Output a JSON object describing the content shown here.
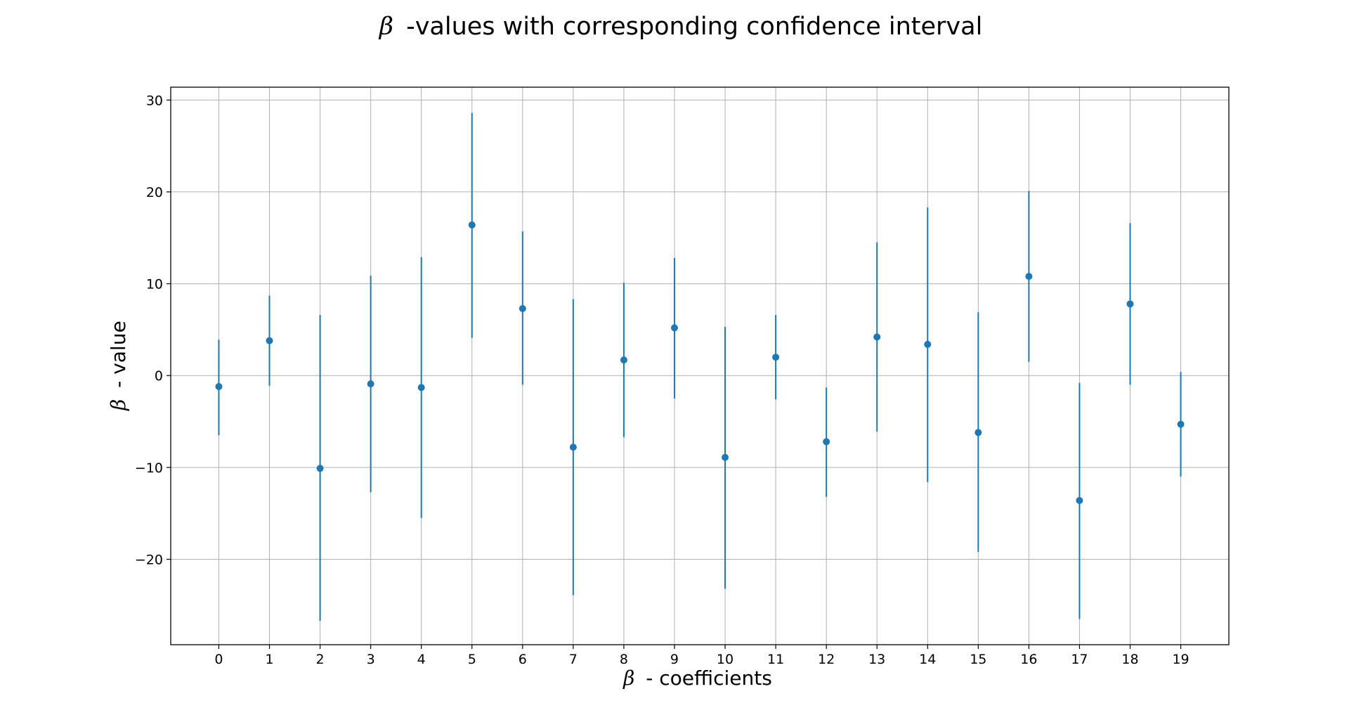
{
  "chart_data": {
    "type": "scatter",
    "title": "-values with corresponding confidence interval",
    "title_symbol": "β",
    "xlabel": "- coefficients",
    "xlabel_symbol": "β",
    "ylabel": "- value",
    "ylabel_symbol": "β",
    "x": [
      0,
      1,
      2,
      3,
      4,
      5,
      6,
      7,
      8,
      9,
      10,
      11,
      12,
      13,
      14,
      15,
      16,
      17,
      18,
      19
    ],
    "y": [
      -1.2,
      3.8,
      -10.1,
      -0.9,
      -1.3,
      16.4,
      7.3,
      -7.8,
      1.7,
      5.2,
      -8.9,
      2.0,
      -7.2,
      4.2,
      3.4,
      -6.2,
      10.8,
      -13.6,
      7.8,
      -5.3
    ],
    "ci_lower": [
      -6.5,
      -1.1,
      -26.7,
      -12.7,
      -15.5,
      4.1,
      -1.0,
      -23.9,
      -6.7,
      -2.5,
      -23.2,
      -2.6,
      -13.2,
      -6.1,
      -11.6,
      -19.2,
      1.5,
      -26.5,
      -1.0,
      -11.0
    ],
    "ci_upper": [
      3.9,
      8.7,
      6.6,
      10.9,
      12.9,
      28.6,
      15.7,
      8.3,
      10.1,
      12.8,
      5.3,
      6.6,
      -1.3,
      14.5,
      18.3,
      6.9,
      20.1,
      -0.8,
      16.6,
      0.4
    ],
    "xticks": [
      "0",
      "1",
      "2",
      "3",
      "4",
      "5",
      "6",
      "7",
      "8",
      "9",
      "10",
      "11",
      "12",
      "13",
      "14",
      "15",
      "16",
      "17",
      "18",
      "19"
    ],
    "yticks": [
      -20,
      -10,
      0,
      10,
      20,
      30
    ],
    "ytick_labels": [
      "−20",
      "−10",
      "0",
      "10",
      "20",
      "30"
    ],
    "xlim": [
      -0.95,
      19.95
    ],
    "ylim": [
      -29.3,
      31.4
    ],
    "grid": true,
    "series_color": "#1f77b4",
    "grid_color": "#b0b0b0",
    "axes_color": "#000000"
  }
}
